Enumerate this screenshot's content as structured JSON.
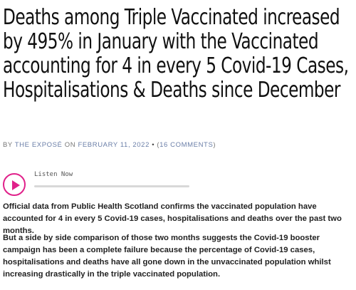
{
  "article": {
    "headline": "Deaths among Triple Vaccinated increased by 495% in January with the Vaccinated accounting for 4 in every 5 Covid-19 Cases, Hospitalisations & Deaths since December",
    "byline": {
      "by": "BY",
      "author": "THE EXPOSÉ",
      "on": "ON",
      "date": "FEBRUARY 11, 2022",
      "bullet": "•",
      "comments_prefix": "(",
      "comments": "16 COMMENTS",
      "comments_suffix": ")"
    },
    "paragraphs": [
      "Official data from Public Health Scotland confirms the vaccinated population have accounted for 4 in every 5 Covid-19 cases, hospitalisations and deaths over the past two months.",
      "But a side by side comparison of those two months suggests the Covid-19 booster campaign has been a complete failure because the percentage of Covid-19 cases, hospitalisations and deaths have all gone down in the unvaccinated population whilst increasing drastically in the triple vaccinated population."
    ]
  },
  "audio_player": {
    "label": "Listen Now",
    "icon": "play-icon",
    "progress": 0,
    "accent_color": "#e0218a"
  },
  "colors": {
    "headline": "#111111",
    "byline": "#777777",
    "link": "#6b7fa8",
    "body": "#222222"
  }
}
